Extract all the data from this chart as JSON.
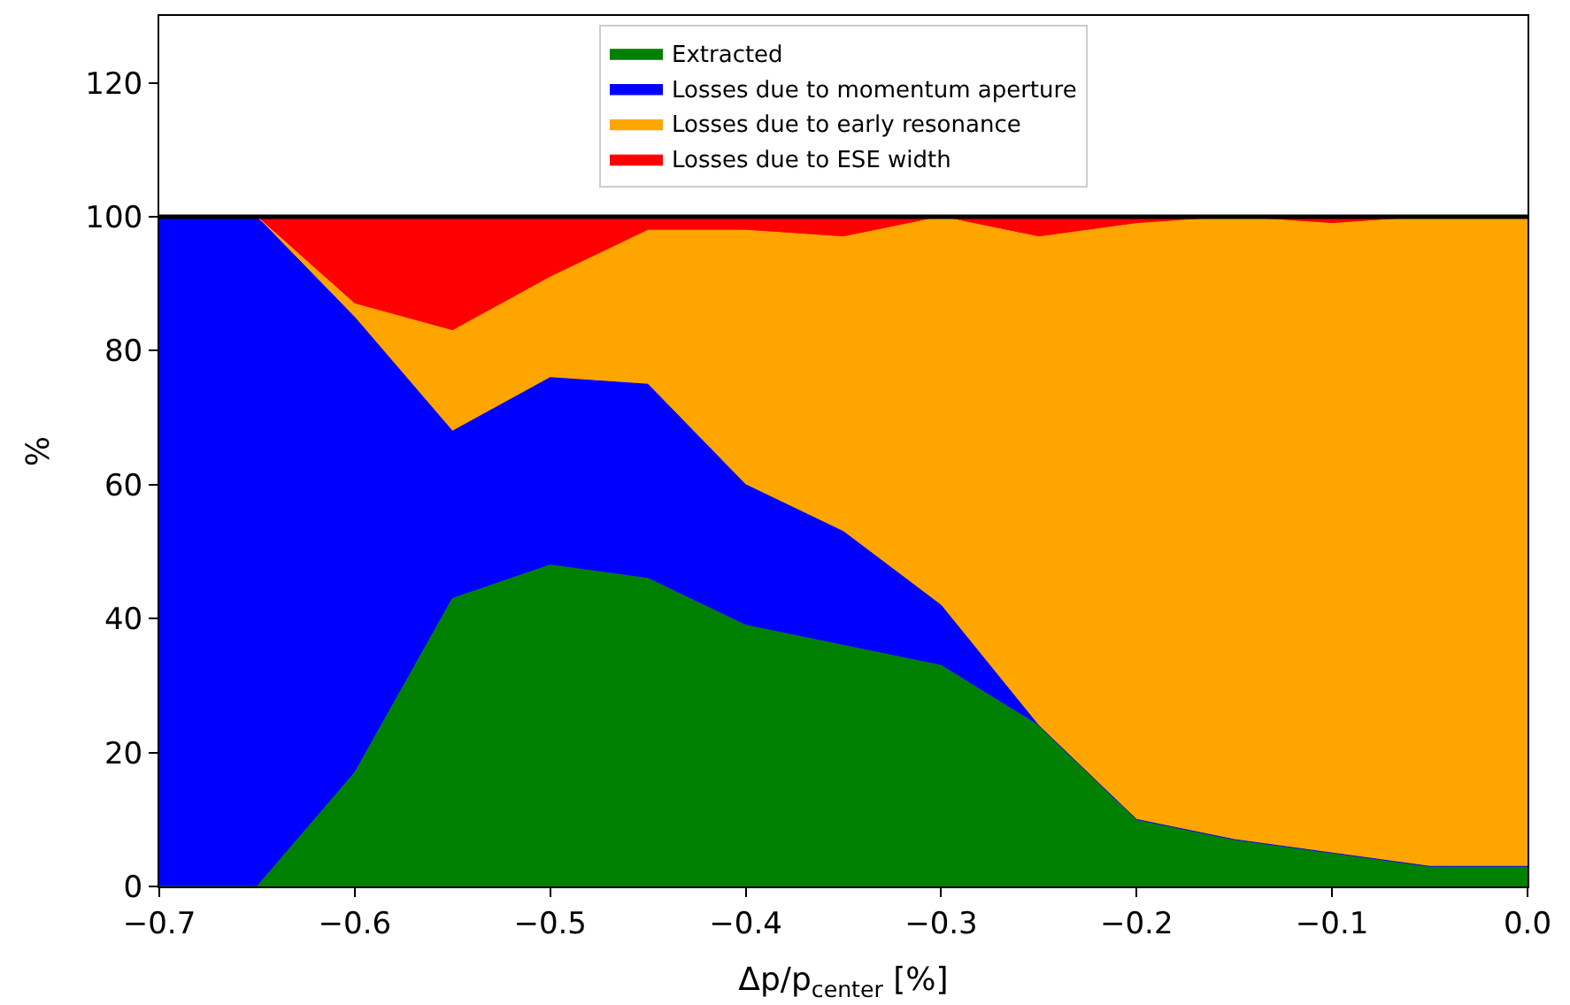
{
  "chart_data": {
    "type": "area",
    "stacked": true,
    "xlabel": "Δp/p$_{center}$ [%]",
    "ylabel": "%",
    "x": [
      -0.7,
      -0.65,
      -0.6,
      -0.55,
      -0.5,
      -0.45,
      -0.4,
      -0.35,
      -0.3,
      -0.25,
      -0.2,
      -0.15,
      -0.1,
      -0.05,
      0.0
    ],
    "series": [
      {
        "name": "Extracted",
        "color": "#008000",
        "values": [
          0,
          0,
          17,
          43,
          48,
          46,
          39,
          36,
          33,
          24,
          10,
          7,
          5,
          3,
          3
        ]
      },
      {
        "name": "Losses due to momentum aperture",
        "color": "#0000ff",
        "values": [
          100,
          100,
          68,
          25,
          28,
          29,
          21,
          17,
          9,
          0,
          0,
          0,
          0,
          0,
          0
        ]
      },
      {
        "name": "Losses due to early resonance",
        "color": "#ffa500",
        "values": [
          0,
          0,
          2,
          15,
          15,
          23,
          38,
          44,
          58,
          73,
          89,
          93,
          94,
          97,
          97
        ]
      },
      {
        "name": "Losses due to ESE width",
        "color": "#ff0000",
        "values": [
          0,
          0,
          13,
          17,
          9,
          2,
          2,
          3,
          0,
          3,
          1,
          0,
          1,
          0,
          0
        ]
      }
    ],
    "xlim": [
      -0.7,
      0.0
    ],
    "xticks": [
      {
        "value": -0.7,
        "label": "−0.7"
      },
      {
        "value": -0.6,
        "label": "−0.6"
      },
      {
        "value": -0.5,
        "label": "−0.5"
      },
      {
        "value": -0.4,
        "label": "−0.4"
      },
      {
        "value": -0.3,
        "label": "−0.3"
      },
      {
        "value": -0.2,
        "label": "−0.2"
      },
      {
        "value": -0.1,
        "label": "−0.1"
      },
      {
        "value": 0.0,
        "label": "0.0"
      }
    ],
    "ylim": [
      0,
      130
    ],
    "yticks": [
      0,
      20,
      40,
      60,
      80,
      100,
      120
    ],
    "ref_lines": [
      {
        "axis": "y",
        "value": 100,
        "color": "#000000",
        "line_style": "solid"
      }
    ],
    "legend": "top"
  }
}
